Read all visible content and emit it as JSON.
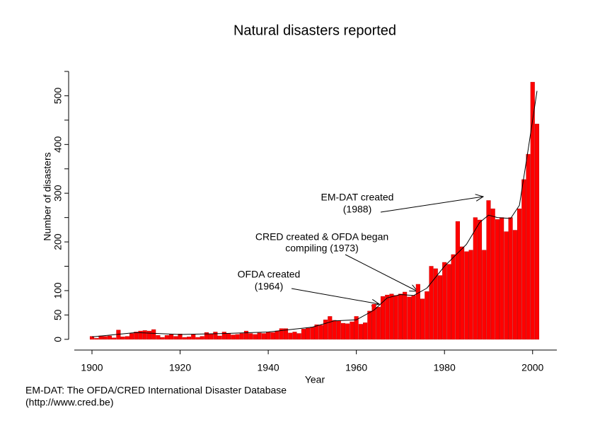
{
  "chart_data": {
    "type": "bar",
    "title": "Natural disasters reported",
    "x_label": "Year",
    "y_label": "Number of disasters",
    "source": [
      "EM-DAT: The OFDA/CRED International Disaster Database",
      "(http://www.cred.be)"
    ],
    "color": "#ff0000",
    "x": [
      1900,
      1901,
      1902,
      1903,
      1904,
      1905,
      1906,
      1907,
      1908,
      1909,
      1910,
      1911,
      1912,
      1913,
      1914,
      1915,
      1916,
      1917,
      1918,
      1919,
      1920,
      1921,
      1922,
      1923,
      1924,
      1925,
      1926,
      1927,
      1928,
      1929,
      1930,
      1931,
      1932,
      1933,
      1934,
      1935,
      1936,
      1937,
      1938,
      1939,
      1940,
      1941,
      1942,
      1943,
      1944,
      1945,
      1946,
      1947,
      1948,
      1949,
      1950,
      1951,
      1952,
      1953,
      1954,
      1955,
      1956,
      1957,
      1958,
      1959,
      1960,
      1961,
      1962,
      1963,
      1964,
      1965,
      1966,
      1967,
      1968,
      1969,
      1970,
      1971,
      1972,
      1973,
      1974,
      1975,
      1976,
      1977,
      1978,
      1979,
      1980,
      1981,
      1982,
      1983,
      1984,
      1985,
      1986,
      1987,
      1988,
      1989,
      1990,
      1991,
      1992,
      1993,
      1994,
      1995,
      1996,
      1997,
      1998,
      1999,
      2000,
      2001
    ],
    "values": [
      6,
      2,
      7,
      6,
      7,
      3,
      19,
      5,
      6,
      12,
      15,
      17,
      18,
      17,
      20,
      8,
      4,
      8,
      10,
      6,
      11,
      4,
      5,
      10,
      4,
      6,
      14,
      11,
      15,
      7,
      15,
      12,
      9,
      10,
      12,
      17,
      12,
      10,
      13,
      12,
      15,
      14,
      17,
      22,
      22,
      13,
      15,
      12,
      21,
      23,
      25,
      30,
      29,
      40,
      47,
      39,
      38,
      33,
      32,
      36,
      47,
      31,
      34,
      58,
      72,
      66,
      88,
      91,
      93,
      90,
      93,
      97,
      87,
      90,
      113,
      83,
      98,
      150,
      145,
      131,
      158,
      154,
      174,
      242,
      190,
      180,
      183,
      250,
      245,
      183,
      285,
      268,
      246,
      250,
      221,
      250,
      224,
      268,
      328,
      380,
      528,
      442
    ],
    "trend": {
      "x": [
        1900,
        1910,
        1920,
        1930,
        1940,
        1950,
        1955,
        1960,
        1964,
        1967,
        1970,
        1973,
        1976,
        1980,
        1985,
        1988,
        1990,
        1992,
        1995,
        1997,
        1999,
        2001
      ],
      "values": [
        5,
        14,
        10,
        12,
        15,
        25,
        38,
        40,
        60,
        85,
        92,
        90,
        105,
        150,
        195,
        240,
        255,
        250,
        248,
        275,
        390,
        510
      ]
    },
    "xlim": [
      1894.7,
      2005.5
    ],
    "xticks": [
      1900,
      1920,
      1940,
      1960,
      1980,
      2000
    ],
    "ylim": [
      -22,
      550
    ],
    "yticks": [
      0,
      50,
      100,
      200,
      300,
      400,
      500
    ],
    "yminor": [
      150,
      250,
      350,
      450,
      550
    ],
    "annotations": [
      {
        "lines": [
          "OFDA created",
          "(1964)"
        ]
      },
      {
        "lines": [
          "CRED created & OFDA began",
          "compiling (1973)"
        ]
      },
      {
        "lines": [
          "EM-DAT created",
          "(1988)"
        ]
      }
    ]
  }
}
